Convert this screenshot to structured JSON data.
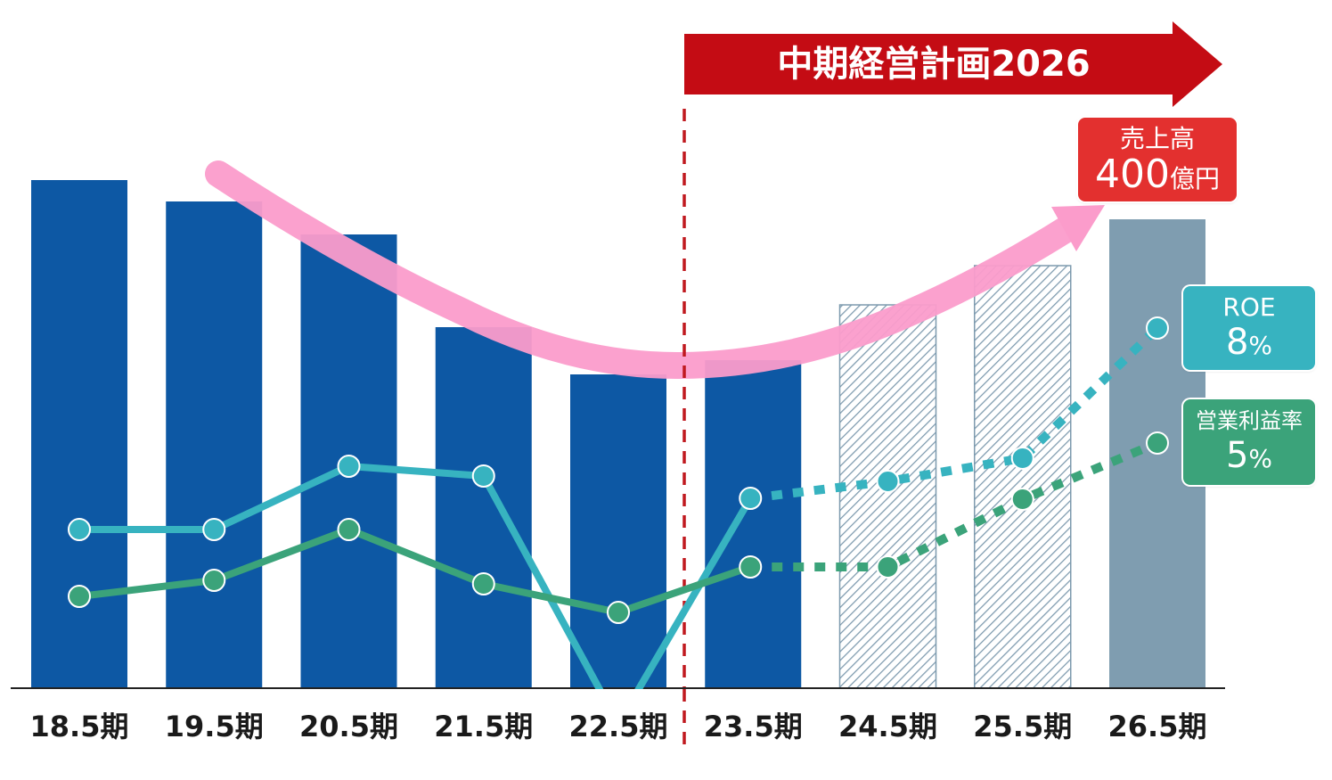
{
  "chart_data": {
    "type": "bar",
    "categories": [
      "18.5期",
      "19.5期",
      "20.5期",
      "21.5期",
      "22.5期",
      "23.5期",
      "24.5期",
      "25.5期",
      "26.5期"
    ],
    "bar_series": {
      "values": [
        570,
        546,
        509,
        405,
        352,
        368,
        430,
        474,
        526
      ],
      "kinds": [
        "actual",
        "actual",
        "actual",
        "actual",
        "actual",
        "actual",
        "forecast",
        "forecast",
        "target"
      ]
    },
    "line_series": [
      {
        "key": "roe",
        "values": [
          178,
          178,
          249,
          238,
          -40,
          213,
          232,
          258,
          404
        ],
        "color": "#37b3c0",
        "actual_count": 6
      },
      {
        "key": "margin",
        "values": [
          103,
          121,
          178,
          117,
          85,
          136,
          136,
          212,
          275
        ],
        "color": "#3ba37a",
        "actual_count": 6
      }
    ],
    "ylim": [
      0,
      700
    ],
    "line_ylim": [
      0,
      700
    ],
    "colors": {
      "actual": "#0d58a4",
      "forecast_stroke": "#7d9aae",
      "target": "#7f9db0",
      "trend": "#fb9ccb",
      "plan_arrow": "#c40c14",
      "divider": "#c0191f"
    }
  },
  "plan_label": "中期経営計画2026",
  "callouts": {
    "sales": {
      "title": "売上高",
      "value": "400",
      "unit": "億円"
    },
    "roe": {
      "title": "ROE",
      "value": "8",
      "unit": "%"
    },
    "margin": {
      "title": "営業利益率",
      "value": "5",
      "unit": "%"
    }
  }
}
